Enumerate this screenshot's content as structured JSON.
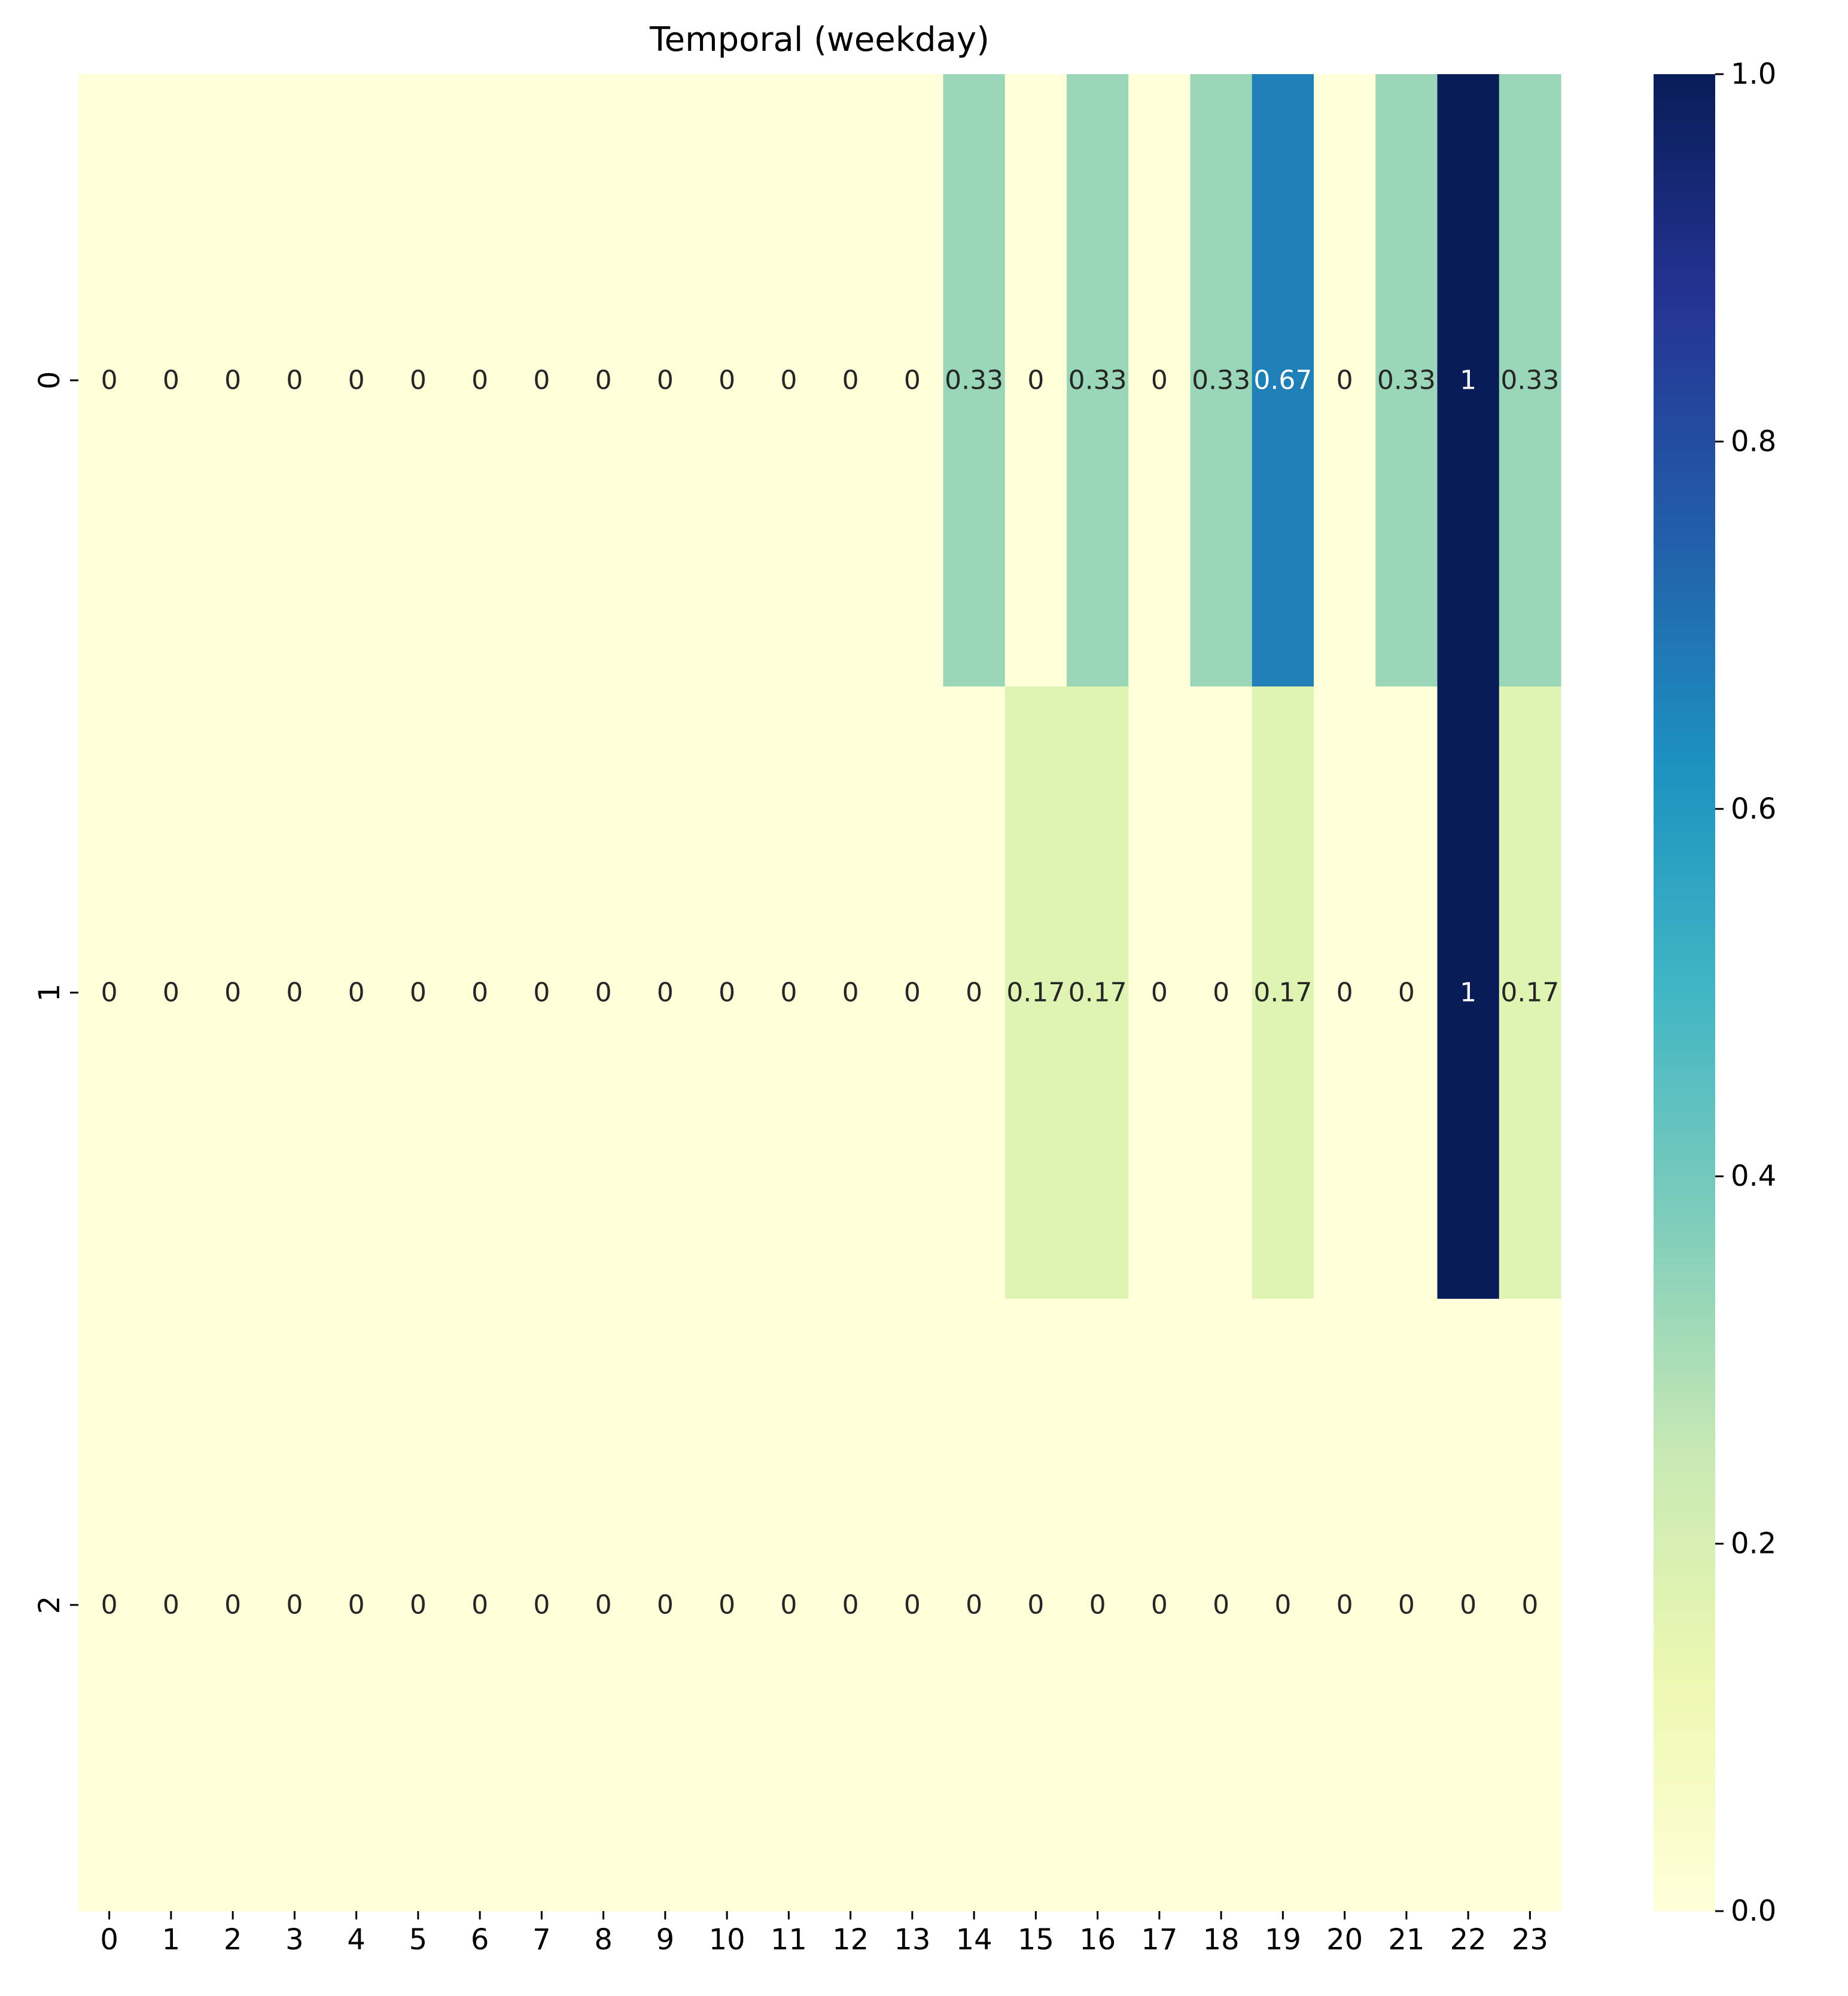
{
  "chart_data": {
    "type": "heatmap",
    "title": "Temporal (weekday)",
    "xlabel": "",
    "ylabel": "",
    "x_categories": [
      "0",
      "1",
      "2",
      "3",
      "4",
      "5",
      "6",
      "7",
      "8",
      "9",
      "10",
      "11",
      "12",
      "13",
      "14",
      "15",
      "16",
      "17",
      "18",
      "19",
      "20",
      "21",
      "22",
      "23"
    ],
    "y_categories": [
      "0",
      "1",
      "2"
    ],
    "values": [
      [
        0,
        0,
        0,
        0,
        0,
        0,
        0,
        0,
        0,
        0,
        0,
        0,
        0,
        0,
        0.33,
        0,
        0.33,
        0,
        0.33,
        0.67,
        0,
        0.33,
        1,
        0.33
      ],
      [
        0,
        0,
        0,
        0,
        0,
        0,
        0,
        0,
        0,
        0,
        0,
        0,
        0,
        0,
        0,
        0.17,
        0.17,
        0,
        0,
        0.17,
        0,
        0,
        1,
        0.17
      ],
      [
        0,
        0,
        0,
        0,
        0,
        0,
        0,
        0,
        0,
        0,
        0,
        0,
        0,
        0,
        0,
        0,
        0,
        0,
        0,
        0,
        0,
        0,
        0,
        0
      ]
    ],
    "annotations": [
      [
        "0",
        "0",
        "0",
        "0",
        "0",
        "0",
        "0",
        "0",
        "0",
        "0",
        "0",
        "0",
        "0",
        "0",
        "0.33",
        "0",
        "0.33",
        "0",
        "0.33",
        "0.67",
        "0",
        "0.33",
        "1",
        "0.33"
      ],
      [
        "0",
        "0",
        "0",
        "0",
        "0",
        "0",
        "0",
        "0",
        "0",
        "0",
        "0",
        "0",
        "0",
        "0",
        "0",
        "0.17",
        "0.17",
        "0",
        "0",
        "0.17",
        "0",
        "0",
        "1",
        "0.17"
      ],
      [
        "0",
        "0",
        "0",
        "0",
        "0",
        "0",
        "0",
        "0",
        "0",
        "0",
        "0",
        "0",
        "0",
        "0",
        "0",
        "0",
        "0",
        "0",
        "0",
        "0",
        "0",
        "0",
        "0",
        "0"
      ]
    ],
    "colormap": "YlGnBu",
    "colormap_stops": [
      "#ffffd9",
      "#edf8b1",
      "#c7e9b4",
      "#7fcdbb",
      "#41b6c4",
      "#1d91c0",
      "#225ea8",
      "#253494",
      "#081d58"
    ],
    "vmin": 0,
    "vmax": 1,
    "colorbar": {
      "ticks": [
        0.0,
        0.2,
        0.4,
        0.6,
        0.8,
        1.0
      ],
      "tick_labels": [
        "0.0",
        "0.2",
        "0.4",
        "0.6",
        "0.8",
        "1.0"
      ]
    },
    "grid": false,
    "legend": "colorbar right"
  }
}
